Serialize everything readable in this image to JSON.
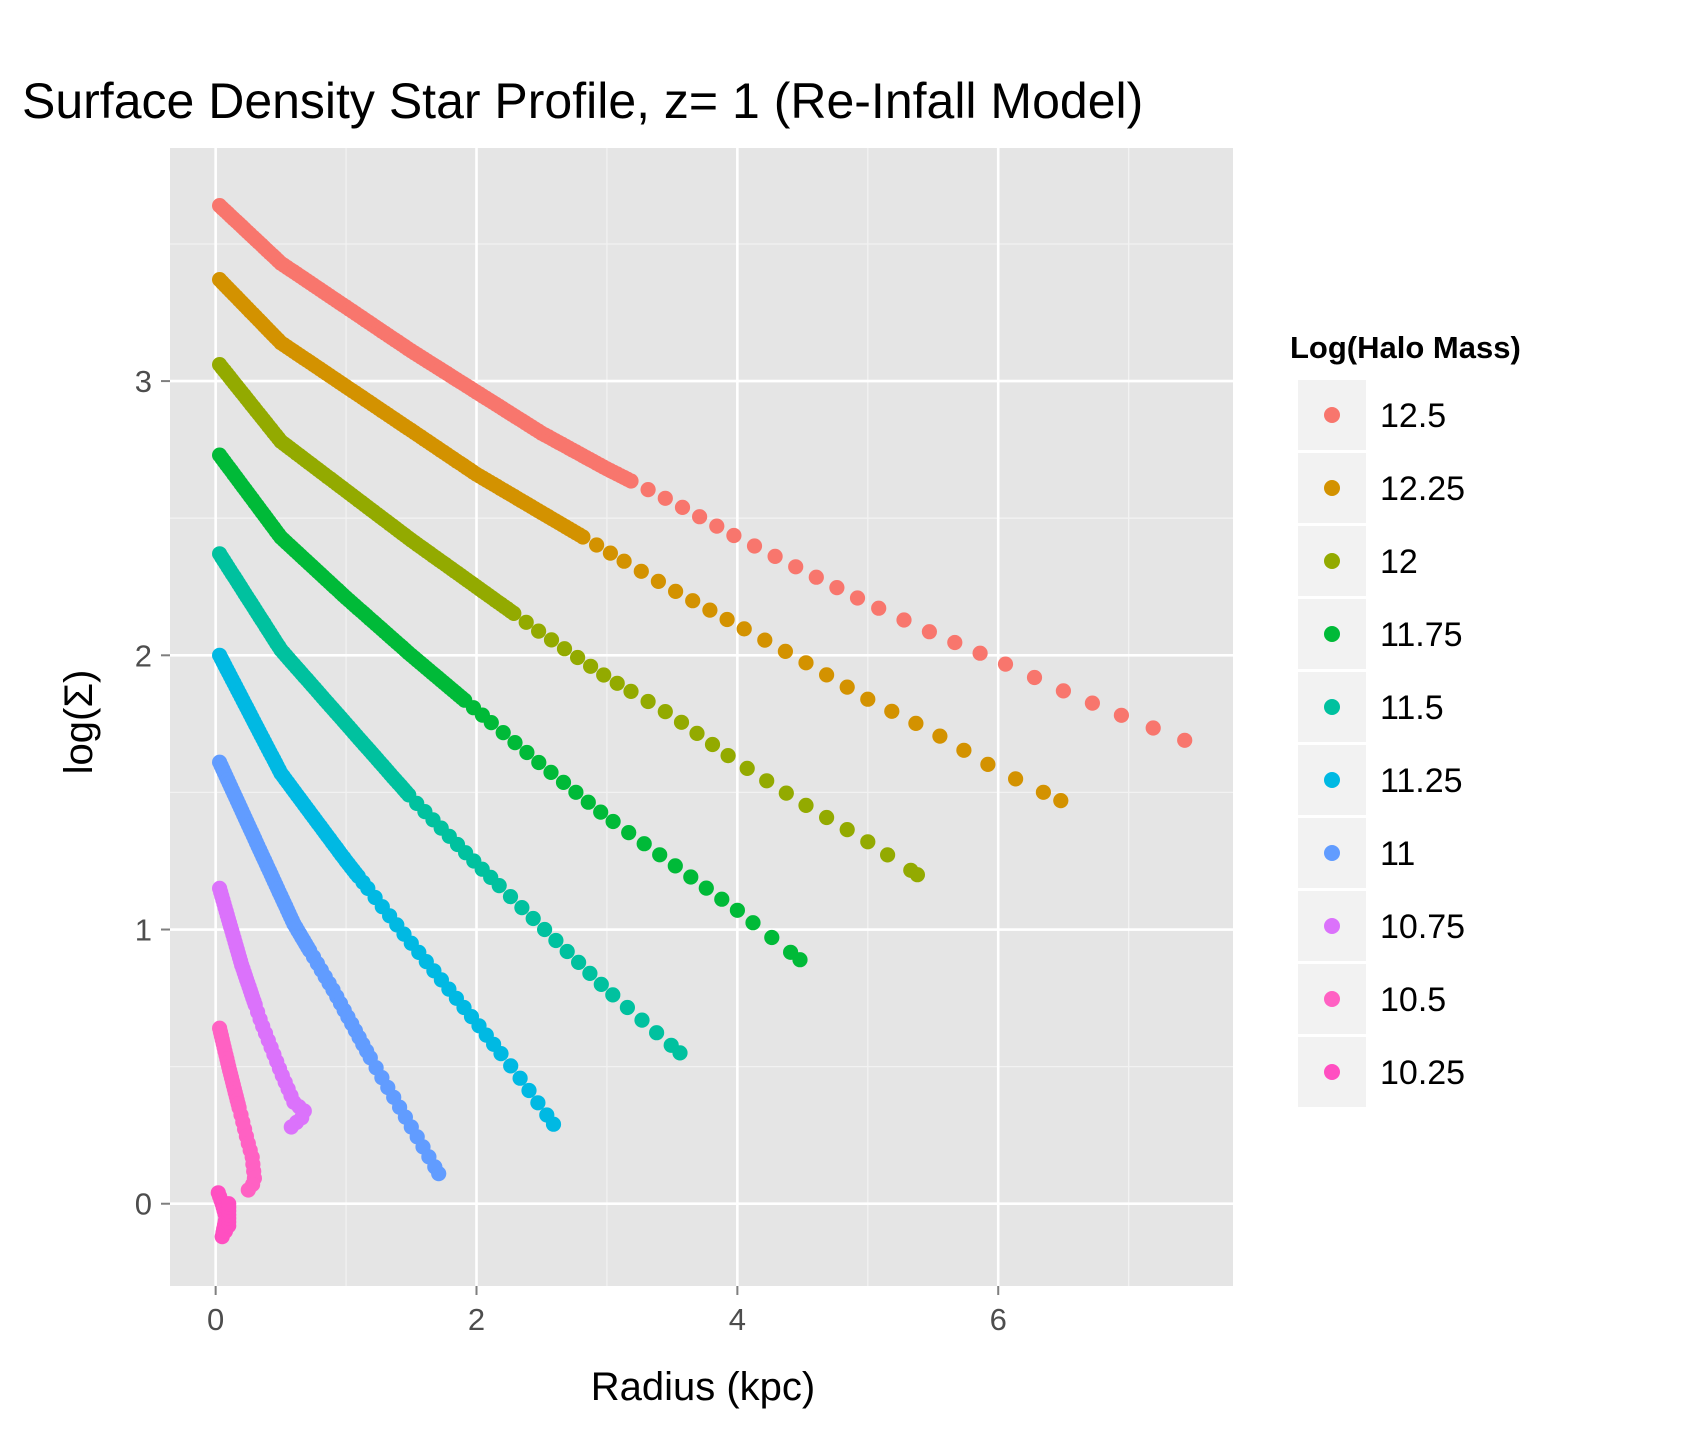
{
  "chart_data": {
    "type": "scatter",
    "title": "Surface Density Star Profile, z= 1 (Re-Infall Model)",
    "xlabel": "Radius (kpc)",
    "ylabel": "log(Σ)",
    "xlim": [
      -0.35,
      7.8
    ],
    "ylim": [
      -0.3,
      3.85
    ],
    "x_ticks": [
      0,
      2,
      4,
      6
    ],
    "y_ticks": [
      0,
      1,
      2,
      3
    ],
    "grid": true,
    "legend": {
      "title": "Log(Halo Mass)",
      "position": "right"
    },
    "series": [
      {
        "name": "12.5",
        "color": "#F8766D",
        "points": [
          [
            0.03,
            3.64
          ],
          [
            0.5,
            3.43
          ],
          [
            1.0,
            3.27
          ],
          [
            1.5,
            3.11
          ],
          [
            2.0,
            2.96
          ],
          [
            2.5,
            2.81
          ],
          [
            3.0,
            2.68
          ],
          [
            3.5,
            2.56
          ],
          [
            4.0,
            2.43
          ],
          [
            4.5,
            2.31
          ],
          [
            5.0,
            2.19
          ],
          [
            5.5,
            2.08
          ],
          [
            6.0,
            1.98
          ],
          [
            6.5,
            1.87
          ],
          [
            7.0,
            1.77
          ],
          [
            7.43,
            1.69
          ]
        ]
      },
      {
        "name": "12.25",
        "color": "#D39200",
        "points": [
          [
            0.03,
            3.37
          ],
          [
            0.5,
            3.14
          ],
          [
            1.0,
            2.98
          ],
          [
            1.5,
            2.82
          ],
          [
            2.0,
            2.66
          ],
          [
            2.5,
            2.52
          ],
          [
            3.0,
            2.38
          ],
          [
            3.5,
            2.24
          ],
          [
            4.0,
            2.11
          ],
          [
            4.5,
            1.98
          ],
          [
            5.0,
            1.84
          ],
          [
            5.5,
            1.72
          ],
          [
            6.0,
            1.58
          ],
          [
            6.48,
            1.47
          ]
        ]
      },
      {
        "name": "12",
        "color": "#93AA00",
        "points": [
          [
            0.03,
            3.06
          ],
          [
            0.5,
            2.78
          ],
          [
            1.0,
            2.6
          ],
          [
            1.5,
            2.42
          ],
          [
            2.0,
            2.25
          ],
          [
            2.5,
            2.08
          ],
          [
            3.0,
            1.92
          ],
          [
            3.5,
            1.78
          ],
          [
            4.0,
            1.61
          ],
          [
            4.5,
            1.46
          ],
          [
            5.0,
            1.32
          ],
          [
            5.38,
            1.2
          ]
        ]
      },
      {
        "name": "11.75",
        "color": "#00BA38",
        "points": [
          [
            0.03,
            2.73
          ],
          [
            0.5,
            2.43
          ],
          [
            1.0,
            2.21
          ],
          [
            1.5,
            2.0
          ],
          [
            2.0,
            1.8
          ],
          [
            2.5,
            1.6
          ],
          [
            3.0,
            1.41
          ],
          [
            3.5,
            1.24
          ],
          [
            4.0,
            1.07
          ],
          [
            4.48,
            0.89
          ]
        ]
      },
      {
        "name": "11.5",
        "color": "#00C19F",
        "points": [
          [
            0.03,
            2.37
          ],
          [
            0.5,
            2.02
          ],
          [
            1.0,
            1.75
          ],
          [
            1.5,
            1.48
          ],
          [
            2.0,
            1.24
          ],
          [
            2.5,
            1.01
          ],
          [
            3.0,
            0.78
          ],
          [
            3.56,
            0.55
          ]
        ]
      },
      {
        "name": "11.25",
        "color": "#00B9E3",
        "points": [
          [
            0.03,
            2.0
          ],
          [
            0.5,
            1.57
          ],
          [
            1.0,
            1.25
          ],
          [
            1.5,
            0.95
          ],
          [
            2.0,
            0.66
          ],
          [
            2.3,
            0.48
          ],
          [
            2.59,
            0.29
          ]
        ]
      },
      {
        "name": "11",
        "color": "#619CFF",
        "points": [
          [
            0.03,
            1.61
          ],
          [
            0.3,
            1.33
          ],
          [
            0.6,
            1.02
          ],
          [
            0.9,
            0.78
          ],
          [
            1.2,
            0.52
          ],
          [
            1.5,
            0.28
          ],
          [
            1.71,
            0.11
          ]
        ]
      },
      {
        "name": "10.75",
        "color": "#DB72FB",
        "points": [
          [
            0.03,
            1.15
          ],
          [
            0.2,
            0.87
          ],
          [
            0.35,
            0.66
          ],
          [
            0.5,
            0.48
          ],
          [
            0.6,
            0.37
          ],
          [
            0.7,
            0.33
          ],
          [
            0.58,
            0.28
          ]
        ]
      },
      {
        "name": "10.5",
        "color": "#FF61C3",
        "points": [
          [
            0.03,
            0.64
          ],
          [
            0.1,
            0.5
          ],
          [
            0.18,
            0.35
          ],
          [
            0.25,
            0.22
          ],
          [
            0.28,
            0.17
          ],
          [
            0.3,
            0.08
          ],
          [
            0.25,
            0.05
          ]
        ]
      },
      {
        "name": "10.25",
        "color": "#FF4FC1",
        "points": [
          [
            0.02,
            0.04
          ],
          [
            0.05,
            0.0
          ],
          [
            0.08,
            -0.05
          ],
          [
            0.05,
            -0.12
          ],
          [
            0.1,
            -0.08
          ],
          [
            0.1,
            0.0
          ]
        ]
      }
    ]
  }
}
